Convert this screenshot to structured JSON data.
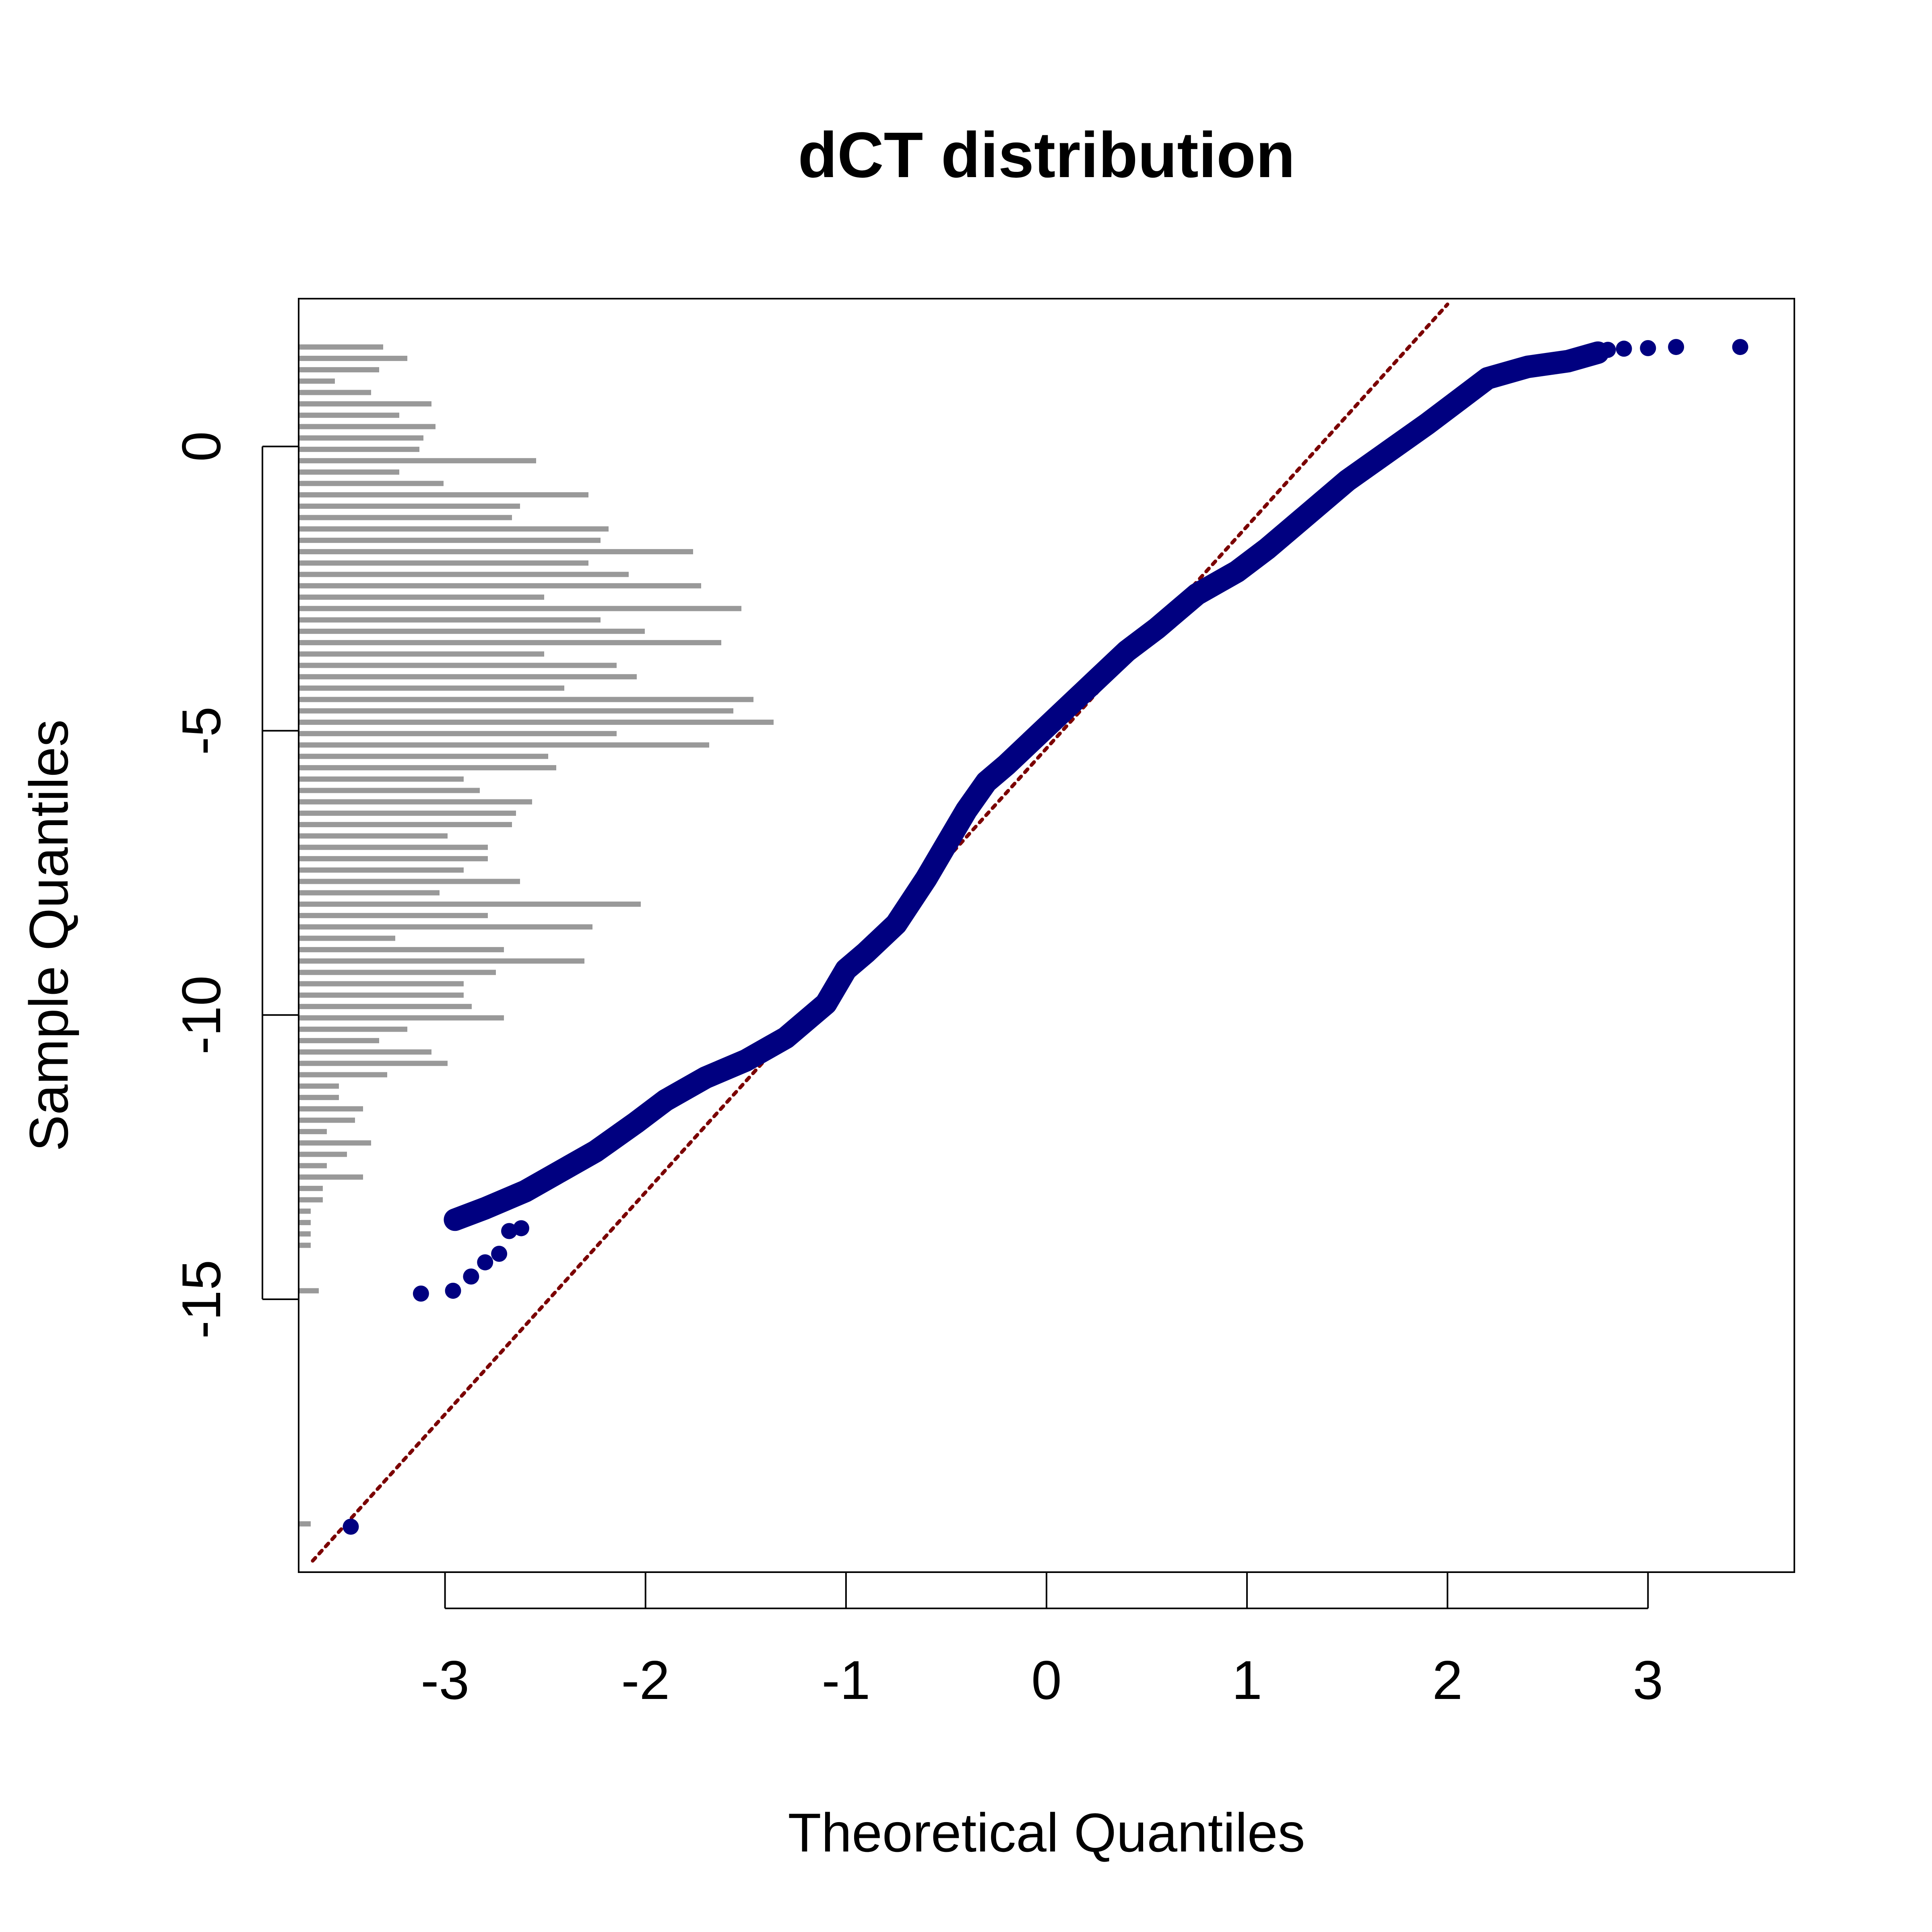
{
  "chart_data": {
    "type": "scatter",
    "title": "dCT distribution",
    "xlabel": "Theoretical Quantiles",
    "ylabel": "Sample Quantiles",
    "xlim": [
      -3.73,
      3.73
    ],
    "ylim": [
      -19.8,
      2.6
    ],
    "x_ticks": [
      -3,
      -2,
      -1,
      0,
      1,
      2,
      3
    ],
    "x_tick_labels": [
      "-3",
      "-2",
      "-1",
      "0",
      "1",
      "2",
      "3"
    ],
    "y_ticks": [
      -15,
      -10,
      -5,
      0
    ],
    "y_tick_labels": [
      "-15",
      "-10",
      "-5",
      "0"
    ],
    "grid": false,
    "legend": "none",
    "colors": {
      "points": "#000080",
      "reference_line": "#7b0000",
      "histogram": "#999999"
    },
    "reference_line": {
      "style": "dotted",
      "points": [
        [
          -3.66,
          -19.6
        ],
        [
          2.0,
          2.5
        ]
      ]
    },
    "quantile_curve": [
      [
        -2.95,
        -13.6
      ],
      [
        -2.8,
        -13.4
      ],
      [
        -2.6,
        -13.1
      ],
      [
        -2.4,
        -12.7
      ],
      [
        -2.25,
        -12.4
      ],
      [
        -2.05,
        -11.9
      ],
      [
        -1.9,
        -11.5
      ],
      [
        -1.7,
        -11.1
      ],
      [
        -1.5,
        -10.8
      ],
      [
        -1.3,
        -10.4
      ],
      [
        -1.1,
        -9.8
      ],
      [
        -1.0,
        -9.2
      ],
      [
        -0.9,
        -8.9
      ],
      [
        -0.75,
        -8.4
      ],
      [
        -0.6,
        -7.6
      ],
      [
        -0.5,
        -7.0
      ],
      [
        -0.4,
        -6.4
      ],
      [
        -0.3,
        -5.9
      ],
      [
        -0.2,
        -5.6
      ],
      [
        -0.05,
        -5.1
      ],
      [
        0.1,
        -4.6
      ],
      [
        0.25,
        -4.1
      ],
      [
        0.4,
        -3.6
      ],
      [
        0.55,
        -3.2
      ],
      [
        0.75,
        -2.6
      ],
      [
        0.95,
        -2.2
      ],
      [
        1.1,
        -1.8
      ],
      [
        1.3,
        -1.2
      ],
      [
        1.5,
        -0.6
      ],
      [
        1.7,
        -0.1
      ],
      [
        1.9,
        0.4
      ],
      [
        2.05,
        0.8
      ],
      [
        2.2,
        1.2
      ],
      [
        2.4,
        1.4
      ],
      [
        2.6,
        1.5
      ],
      [
        2.75,
        1.65
      ]
    ],
    "points": [
      [
        -3.47,
        -19.0
      ],
      [
        -3.12,
        -14.9
      ],
      [
        -2.96,
        -14.85
      ],
      [
        -2.87,
        -14.6
      ],
      [
        -2.8,
        -14.35
      ],
      [
        -2.73,
        -14.2
      ],
      [
        -2.68,
        -13.8
      ],
      [
        -2.62,
        -13.75
      ],
      [
        2.8,
        1.7
      ],
      [
        2.88,
        1.72
      ],
      [
        3.0,
        1.73
      ],
      [
        3.14,
        1.75
      ],
      [
        3.46,
        1.75
      ]
    ],
    "histogram": {
      "orientation": "horizontal",
      "bins": [
        [
          1.75,
          0.21
        ],
        [
          1.55,
          0.27
        ],
        [
          1.35,
          0.2
        ],
        [
          1.15,
          0.09
        ],
        [
          0.95,
          0.18
        ],
        [
          0.75,
          0.33
        ],
        [
          0.55,
          0.25
        ],
        [
          0.35,
          0.34
        ],
        [
          0.15,
          0.31
        ],
        [
          -0.05,
          0.3
        ],
        [
          -0.25,
          0.59
        ],
        [
          -0.45,
          0.25
        ],
        [
          -0.65,
          0.36
        ],
        [
          -0.85,
          0.72
        ],
        [
          -1.05,
          0.55
        ],
        [
          -1.25,
          0.53
        ],
        [
          -1.45,
          0.77
        ],
        [
          -1.65,
          0.75
        ],
        [
          -1.85,
          0.98
        ],
        [
          -2.05,
          0.72
        ],
        [
          -2.25,
          0.82
        ],
        [
          -2.45,
          1.0
        ],
        [
          -2.65,
          0.61
        ],
        [
          -2.85,
          1.1
        ],
        [
          -3.05,
          0.75
        ],
        [
          -3.25,
          0.86
        ],
        [
          -3.45,
          1.05
        ],
        [
          -3.65,
          0.61
        ],
        [
          -3.85,
          0.79
        ],
        [
          -4.05,
          0.84
        ],
        [
          -4.25,
          0.66
        ],
        [
          -4.45,
          1.13
        ],
        [
          -4.65,
          1.08
        ],
        [
          -4.85,
          1.18
        ],
        [
          -5.05,
          0.79
        ],
        [
          -5.25,
          1.02
        ],
        [
          -5.45,
          0.62
        ],
        [
          -5.65,
          0.64
        ],
        [
          -5.85,
          0.41
        ],
        [
          -6.05,
          0.45
        ],
        [
          -6.25,
          0.58
        ],
        [
          -6.45,
          0.54
        ],
        [
          -6.65,
          0.53
        ],
        [
          -6.85,
          0.37
        ],
        [
          -7.05,
          0.47
        ],
        [
          -7.25,
          0.47
        ],
        [
          -7.45,
          0.41
        ],
        [
          -7.65,
          0.55
        ],
        [
          -7.85,
          0.35
        ],
        [
          -8.05,
          0.85
        ],
        [
          -8.25,
          0.47
        ],
        [
          -8.45,
          0.73
        ],
        [
          -8.65,
          0.24
        ],
        [
          -8.85,
          0.51
        ],
        [
          -9.05,
          0.71
        ],
        [
          -9.25,
          0.49
        ],
        [
          -9.45,
          0.41
        ],
        [
          -9.65,
          0.41
        ],
        [
          -9.85,
          0.43
        ],
        [
          -10.05,
          0.51
        ],
        [
          -10.25,
          0.27
        ],
        [
          -10.45,
          0.2
        ],
        [
          -10.65,
          0.33
        ],
        [
          -10.85,
          0.37
        ],
        [
          -11.05,
          0.22
        ],
        [
          -11.25,
          0.1
        ],
        [
          -11.45,
          0.1
        ],
        [
          -11.65,
          0.16
        ],
        [
          -11.85,
          0.14
        ],
        [
          -12.05,
          0.07
        ],
        [
          -12.25,
          0.18
        ],
        [
          -12.45,
          0.12
        ],
        [
          -12.65,
          0.07
        ],
        [
          -12.85,
          0.16
        ],
        [
          -13.05,
          0.06
        ],
        [
          -13.25,
          0.06
        ],
        [
          -13.45,
          0.03
        ],
        [
          -13.65,
          0.03
        ],
        [
          -13.85,
          0.03
        ],
        [
          -14.05,
          0.03
        ],
        [
          -14.85,
          0.05
        ],
        [
          -18.95,
          0.03
        ]
      ]
    }
  }
}
